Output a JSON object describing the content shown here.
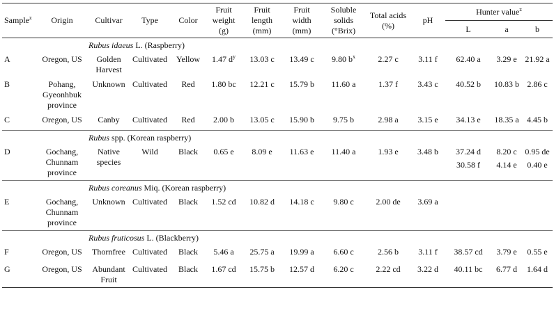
{
  "table": {
    "columns": [
      {
        "label": "Sample",
        "sup": "z"
      },
      "Origin",
      "Cultivar",
      "Type",
      "Color",
      "Fruit weight (g)",
      "Fruit length (mm)",
      "Fruit width (mm)",
      "Soluble solids (°Brix)",
      "Total acids (%)",
      "pH",
      {
        "label": "Hunter value",
        "sup": "z"
      }
    ],
    "hunter_columns": [
      "L",
      "a",
      "b"
    ],
    "groups": [
      {
        "species": "Rubus idaeus",
        "rest": "L. (Raspberry)",
        "rows": [
          {
            "cells": [
              "A",
              "Oregon, US",
              "Golden Harvest",
              "Cultivated",
              "Yellow",
              {
                "text": "1.47 d",
                "sup": "y"
              },
              "13.03 c",
              "13.49 c",
              {
                "text": "9.80 b",
                "sup": "x"
              },
              "2.27 c",
              "3.11 f"
            ],
            "hunter": [
              [
                "62.40 a",
                "3.29 e",
                "21.92 a"
              ]
            ]
          },
          {
            "cells": [
              "B",
              "Pohang, Gyeonhbuk province",
              "Unknown",
              "Cultivated",
              "Red",
              "1.80 bc",
              "12.21 c",
              "15.79 b",
              "11.60 a",
              "1.37 f",
              "3.43 c"
            ],
            "hunter": [
              [
                "40.52 b",
                "10.83 b",
                "2.86 c"
              ]
            ]
          },
          {
            "cells": [
              "C",
              "Oregon, US",
              "Canby",
              "Cultivated",
              "Red",
              "2.00 b",
              "13.05 c",
              "15.90 b",
              "9.75 b",
              "2.98 a",
              "3.15 e"
            ],
            "hunter": [
              [
                "34.13 e",
                "18.35 a",
                "4.45 b"
              ]
            ]
          }
        ]
      },
      {
        "species": "Rubus",
        "rest": "spp. (Korean raspberry)",
        "rows": [
          {
            "cells": [
              "D",
              "Gochang, Chunnam province",
              "Native species",
              "Wild",
              "Black",
              "0.65 e",
              "8.09 e",
              "11.63 e",
              "11.40 a",
              "1.93 e",
              "3.48 b"
            ],
            "hunter": [
              [
                "37.24 d",
                "8.20 c",
                "0.95 de"
              ],
              [
                "30.58 f",
                "4.14 e",
                "0.40 e"
              ]
            ]
          }
        ]
      },
      {
        "species": "Rubus coreanus",
        "rest": "Miq. (Korean raspberry)",
        "rows": [
          {
            "cells": [
              "E",
              "Gochang, Chunnam province",
              "Unknown",
              "Cultivated",
              "Black",
              "1.52 cd",
              "10.82 d",
              "14.18 c",
              "9.80 c",
              "2.00 de",
              "3.69 a"
            ],
            "hunter": []
          }
        ]
      },
      {
        "species": "Rubus fruticosus",
        "rest": "L. (Blackberry)",
        "rows": [
          {
            "cells": [
              "F",
              "Oregon, US",
              "Thornfree",
              "Cultivated",
              "Black",
              "5.46 a",
              "25.75 a",
              "19.99 a",
              "6.60 c",
              "2.56 b",
              "3.11 f"
            ],
            "hunter": [
              [
                "38.57 cd",
                "3.79 e",
                "0.55 e"
              ]
            ]
          },
          {
            "cells": [
              "G",
              "Oregon, US",
              "Abundant Fruit",
              "Cultivated",
              "Black",
              "1.67 cd",
              "15.75 b",
              "12.57 d",
              "6.20 c",
              "2.22 cd",
              "3.22 d"
            ],
            "hunter": [
              [
                "40.11 bc",
                "6.77 d",
                "1.64 d"
              ]
            ]
          }
        ]
      }
    ]
  }
}
